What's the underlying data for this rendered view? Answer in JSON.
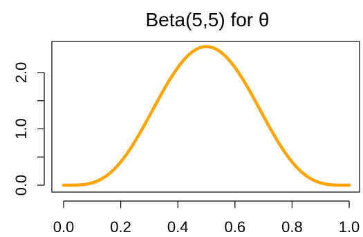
{
  "chart_data": {
    "type": "line",
    "title": "Beta(5,5) for θ",
    "xlabel": "",
    "ylabel": "",
    "xlim": [
      0.0,
      1.0
    ],
    "ylim": [
      0.0,
      2.46
    ],
    "x_ticks": [
      0.0,
      0.2,
      0.4,
      0.6,
      0.8,
      1.0
    ],
    "x_tick_labels": [
      "0.0",
      "0.2",
      "0.4",
      "0.6",
      "0.8",
      "1.0"
    ],
    "y_ticks": [
      0.0,
      0.5,
      1.0,
      1.5,
      2.0
    ],
    "y_tick_labels": [
      "0.0",
      "1.0",
      "2.0"
    ],
    "y_labeled_ticks": [
      0.0,
      1.0,
      2.0
    ],
    "grid": false,
    "series": [
      {
        "color": "#FFA500",
        "x": [
          0.0,
          0.05,
          0.1,
          0.15,
          0.2,
          0.25,
          0.3,
          0.35,
          0.4,
          0.45,
          0.5,
          0.55,
          0.6,
          0.65,
          0.7,
          0.75,
          0.8,
          0.85,
          0.9,
          0.95,
          1.0
        ],
        "y": [
          0.0,
          0.003,
          0.041,
          0.174,
          0.459,
          0.89,
          1.361,
          1.779,
          2.09,
          2.278,
          2.461,
          2.278,
          2.09,
          1.779,
          1.361,
          0.89,
          0.459,
          0.174,
          0.041,
          0.003,
          0.0
        ]
      }
    ]
  }
}
